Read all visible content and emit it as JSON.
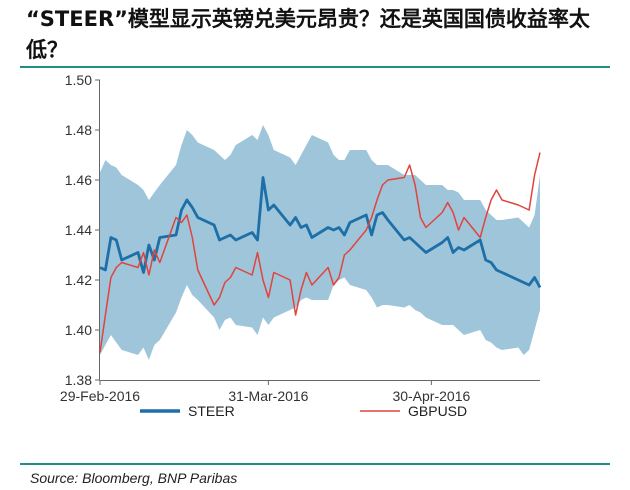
{
  "title": "“STEER”模型显示英镑兑美元昂贵？还是英国国债收益率太低？",
  "source": "Source: Bloomberg, BNP Paribas",
  "colors": {
    "band": "#9fc5db",
    "steer": "#1d6fa8",
    "gbpusd": "#e0443d",
    "axis": "#666666"
  },
  "chart_data": {
    "type": "line",
    "title": "",
    "xlabel": "",
    "ylabel": "",
    "ylim": [
      1.38,
      1.5
    ],
    "yticks": [
      "1.38",
      "1.40",
      "1.42",
      "1.44",
      "1.46",
      "1.48",
      "1.50"
    ],
    "xrange": [
      "2016-02-29",
      "2016-05-20"
    ],
    "xticks": [
      {
        "date": "2016-02-29",
        "label": "29-Feb-2016"
      },
      {
        "date": "2016-03-31",
        "label": "31-Mar-2016"
      },
      {
        "date": "2016-04-30",
        "label": "30-Apr-2016"
      }
    ],
    "legend_position": "bottom",
    "dates": [
      "2016-02-29",
      "2016-03-01",
      "2016-03-02",
      "2016-03-03",
      "2016-03-04",
      "2016-03-07",
      "2016-03-08",
      "2016-03-09",
      "2016-03-10",
      "2016-03-11",
      "2016-03-14",
      "2016-03-15",
      "2016-03-16",
      "2016-03-17",
      "2016-03-18",
      "2016-03-21",
      "2016-03-22",
      "2016-03-23",
      "2016-03-24",
      "2016-03-25",
      "2016-03-28",
      "2016-03-29",
      "2016-03-30",
      "2016-03-31",
      "2016-04-01",
      "2016-04-04",
      "2016-04-05",
      "2016-04-06",
      "2016-04-07",
      "2016-04-08",
      "2016-04-11",
      "2016-04-12",
      "2016-04-13",
      "2016-04-14",
      "2016-04-15",
      "2016-04-18",
      "2016-04-19",
      "2016-04-20",
      "2016-04-21",
      "2016-04-22",
      "2016-04-25",
      "2016-04-26",
      "2016-04-27",
      "2016-04-28",
      "2016-04-29",
      "2016-05-02",
      "2016-05-03",
      "2016-05-04",
      "2016-05-05",
      "2016-05-06",
      "2016-05-09",
      "2016-05-10",
      "2016-05-11",
      "2016-05-12",
      "2016-05-13",
      "2016-05-16",
      "2016-05-17",
      "2016-05-18",
      "2016-05-19",
      "2016-05-20"
    ],
    "series": [
      {
        "name": "STEER",
        "values": [
          1.425,
          1.424,
          1.437,
          1.436,
          1.428,
          1.431,
          1.423,
          1.434,
          1.428,
          1.437,
          1.438,
          1.448,
          1.452,
          1.449,
          1.445,
          1.442,
          1.436,
          1.437,
          1.438,
          1.436,
          1.439,
          1.436,
          1.461,
          1.448,
          1.45,
          1.442,
          1.445,
          1.441,
          1.442,
          1.437,
          1.441,
          1.44,
          1.441,
          1.438,
          1.443,
          1.446,
          1.438,
          1.446,
          1.447,
          1.444,
          1.436,
          1.437,
          1.435,
          1.433,
          1.431,
          1.435,
          1.437,
          1.431,
          1.433,
          1.432,
          1.436,
          1.428,
          1.427,
          1.424,
          1.423,
          1.42,
          1.419,
          1.418,
          1.421,
          1.417
        ]
      },
      {
        "name": "GBPUSD",
        "values": [
          1.391,
          1.406,
          1.421,
          1.425,
          1.427,
          1.425,
          1.431,
          1.422,
          1.432,
          1.427,
          1.445,
          1.443,
          1.446,
          1.437,
          1.424,
          1.41,
          1.413,
          1.419,
          1.421,
          1.425,
          1.422,
          1.431,
          1.42,
          1.413,
          1.423,
          1.42,
          1.406,
          1.416,
          1.423,
          1.418,
          1.425,
          1.418,
          1.421,
          1.43,
          1.432,
          1.44,
          1.445,
          1.452,
          1.458,
          1.46,
          1.461,
          1.466,
          1.458,
          1.445,
          1.441,
          1.447,
          1.451,
          1.447,
          1.44,
          1.445,
          1.437,
          1.445,
          1.452,
          1.456,
          1.452,
          1.45,
          1.449,
          1.448,
          1.462,
          1.471
        ]
      },
      {
        "name": "band_upper",
        "values": [
          1.463,
          1.468,
          1.466,
          1.465,
          1.462,
          1.458,
          1.456,
          1.452,
          1.455,
          1.458,
          1.466,
          1.474,
          1.48,
          1.478,
          1.475,
          1.472,
          1.47,
          1.468,
          1.47,
          1.474,
          1.478,
          1.476,
          1.482,
          1.478,
          1.472,
          1.469,
          1.466,
          1.47,
          1.474,
          1.478,
          1.475,
          1.47,
          1.468,
          1.468,
          1.472,
          1.472,
          1.468,
          1.466,
          1.466,
          1.466,
          1.462,
          1.462,
          1.462,
          1.46,
          1.458,
          1.458,
          1.456,
          1.456,
          1.455,
          1.452,
          1.452,
          1.448,
          1.446,
          1.444,
          1.444,
          1.445,
          1.443,
          1.441,
          1.446,
          1.462
        ]
      },
      {
        "name": "band_lower",
        "values": [
          1.39,
          1.394,
          1.398,
          1.395,
          1.392,
          1.39,
          1.393,
          1.388,
          1.394,
          1.396,
          1.407,
          1.413,
          1.418,
          1.414,
          1.412,
          1.405,
          1.4,
          1.404,
          1.405,
          1.402,
          1.401,
          1.398,
          1.405,
          1.402,
          1.405,
          1.408,
          1.409,
          1.412,
          1.413,
          1.412,
          1.412,
          1.418,
          1.42,
          1.421,
          1.418,
          1.416,
          1.413,
          1.409,
          1.41,
          1.41,
          1.409,
          1.41,
          1.408,
          1.407,
          1.405,
          1.402,
          1.402,
          1.402,
          1.4,
          1.398,
          1.4,
          1.396,
          1.395,
          1.393,
          1.392,
          1.393,
          1.39,
          1.392,
          1.4,
          1.408
        ]
      }
    ],
    "legend": [
      {
        "name": "STEER",
        "color": "#1d6fa8"
      },
      {
        "name": "GBPUSD",
        "color": "#e0443d"
      }
    ]
  }
}
